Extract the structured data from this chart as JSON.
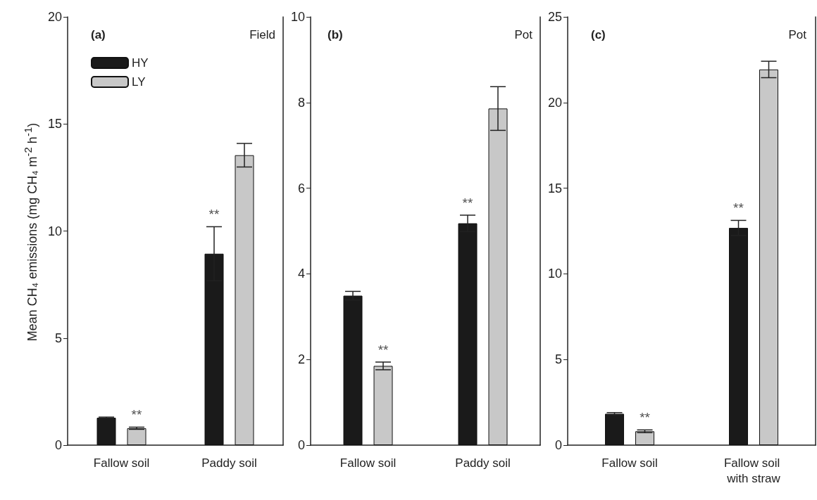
{
  "chart_data": [
    {
      "type": "bar",
      "title": "(a)",
      "subtitle": "Field",
      "ylabel": "Mean CH₄ emissions (mg CH₄ m$^{-2}$ h$^{-1}$)",
      "categories": [
        "Fallow soil",
        "Paddy soil"
      ],
      "ylim": [
        0,
        20
      ],
      "yticks": [
        0,
        5,
        10,
        15,
        20
      ],
      "legend": "top left",
      "grid": false,
      "series": [
        {
          "name": "HY",
          "color": "#1a1a1a",
          "values": [
            1.28,
            8.94
          ],
          "errors": [
            0.03,
            1.26
          ]
        },
        {
          "name": "LY",
          "color": "#c8c8c8",
          "values": [
            0.79,
            13.54
          ],
          "errors": [
            0.05,
            0.55
          ]
        }
      ],
      "annotations": [
        "**",
        "**"
      ]
    },
    {
      "type": "bar",
      "title": "(b)",
      "subtitle": "Pot",
      "categories": [
        "Fallow soil",
        "Paddy soil"
      ],
      "ylim": [
        0,
        10
      ],
      "yticks": [
        0,
        2,
        4,
        6,
        8,
        10
      ],
      "grid": false,
      "series": [
        {
          "color": "#1a1a1a",
          "values": [
            3.49,
            5.18
          ],
          "errors": [
            0.1,
            0.19
          ]
        },
        {
          "color": "#c8c8c8",
          "values": [
            1.85,
            7.86
          ],
          "errors": [
            0.09,
            0.51
          ]
        }
      ],
      "annotations": [
        "**",
        "**"
      ]
    },
    {
      "type": "bar",
      "title": "(c)",
      "subtitle": "Pot",
      "categories": [
        "Fallow soil",
        "Fallow soil with straw"
      ],
      "ylim": [
        0,
        25
      ],
      "yticks": [
        0,
        5,
        10,
        15,
        20,
        25
      ],
      "grid": false,
      "series": [
        {
          "color": "#1a1a1a",
          "values": [
            1.83,
            12.68
          ],
          "errors": [
            0.07,
            0.44
          ]
        },
        {
          "color": "#c8c8c8",
          "values": [
            0.81,
            21.93
          ],
          "errors": [
            0.08,
            0.48
          ]
        }
      ],
      "annotations": [
        "**",
        "**"
      ]
    }
  ]
}
